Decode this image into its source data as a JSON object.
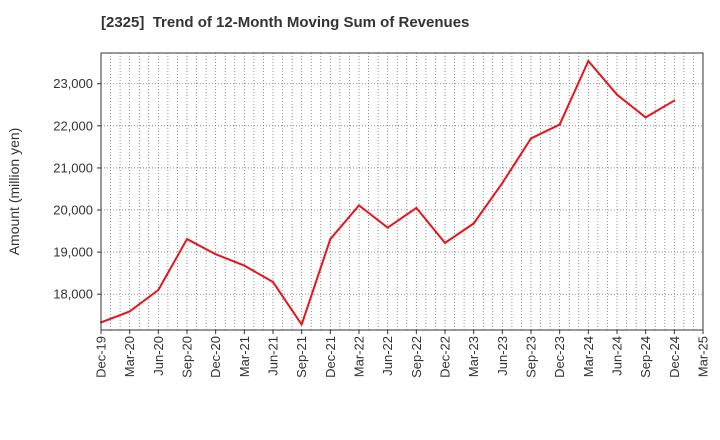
{
  "chart_data": {
    "type": "line",
    "title": "[2325]  Trend of 12-Month Moving Sum of Revenues",
    "ylabel": "Amount (million yen)",
    "xlabel": "",
    "grid": true,
    "x_tick_labels": [
      "Dec-19",
      "Mar-20",
      "Jun-20",
      "Sep-20",
      "Dec-20",
      "Mar-21",
      "Jun-21",
      "Sep-21",
      "Dec-21",
      "Mar-22",
      "Jun-22",
      "Sep-22",
      "Dec-22",
      "Mar-23",
      "Jun-23",
      "Sep-23",
      "Dec-23",
      "Mar-24",
      "Jun-24",
      "Sep-24",
      "Dec-24",
      "Mar-25"
    ],
    "y_ticks": [
      18000,
      19000,
      20000,
      21000,
      22000,
      23000
    ],
    "y_tick_labels": [
      "18,000",
      "19,000",
      "20,000",
      "21,000",
      "22,000",
      "23,000"
    ],
    "ylim": [
      17150,
      23730
    ],
    "series": [
      {
        "color": "#e8141b",
        "x": [
          "Dec-19",
          "Mar-20",
          "Jun-20",
          "Sep-20",
          "Dec-20",
          "Mar-21",
          "Jun-21",
          "Sep-21",
          "Dec-21",
          "Mar-22",
          "Jun-22",
          "Sep-22",
          "Dec-22",
          "Mar-23",
          "Jun-23",
          "Sep-23",
          "Dec-23",
          "Mar-24",
          "Jun-24",
          "Sep-24",
          "Dec-24"
        ],
        "values": [
          17330,
          17590,
          18100,
          19310,
          18950,
          18680,
          18290,
          17280,
          19310,
          20110,
          19580,
          20050,
          19220,
          19680,
          20640,
          21700,
          22030,
          23540,
          22740,
          22200,
          22600
        ]
      }
    ]
  }
}
